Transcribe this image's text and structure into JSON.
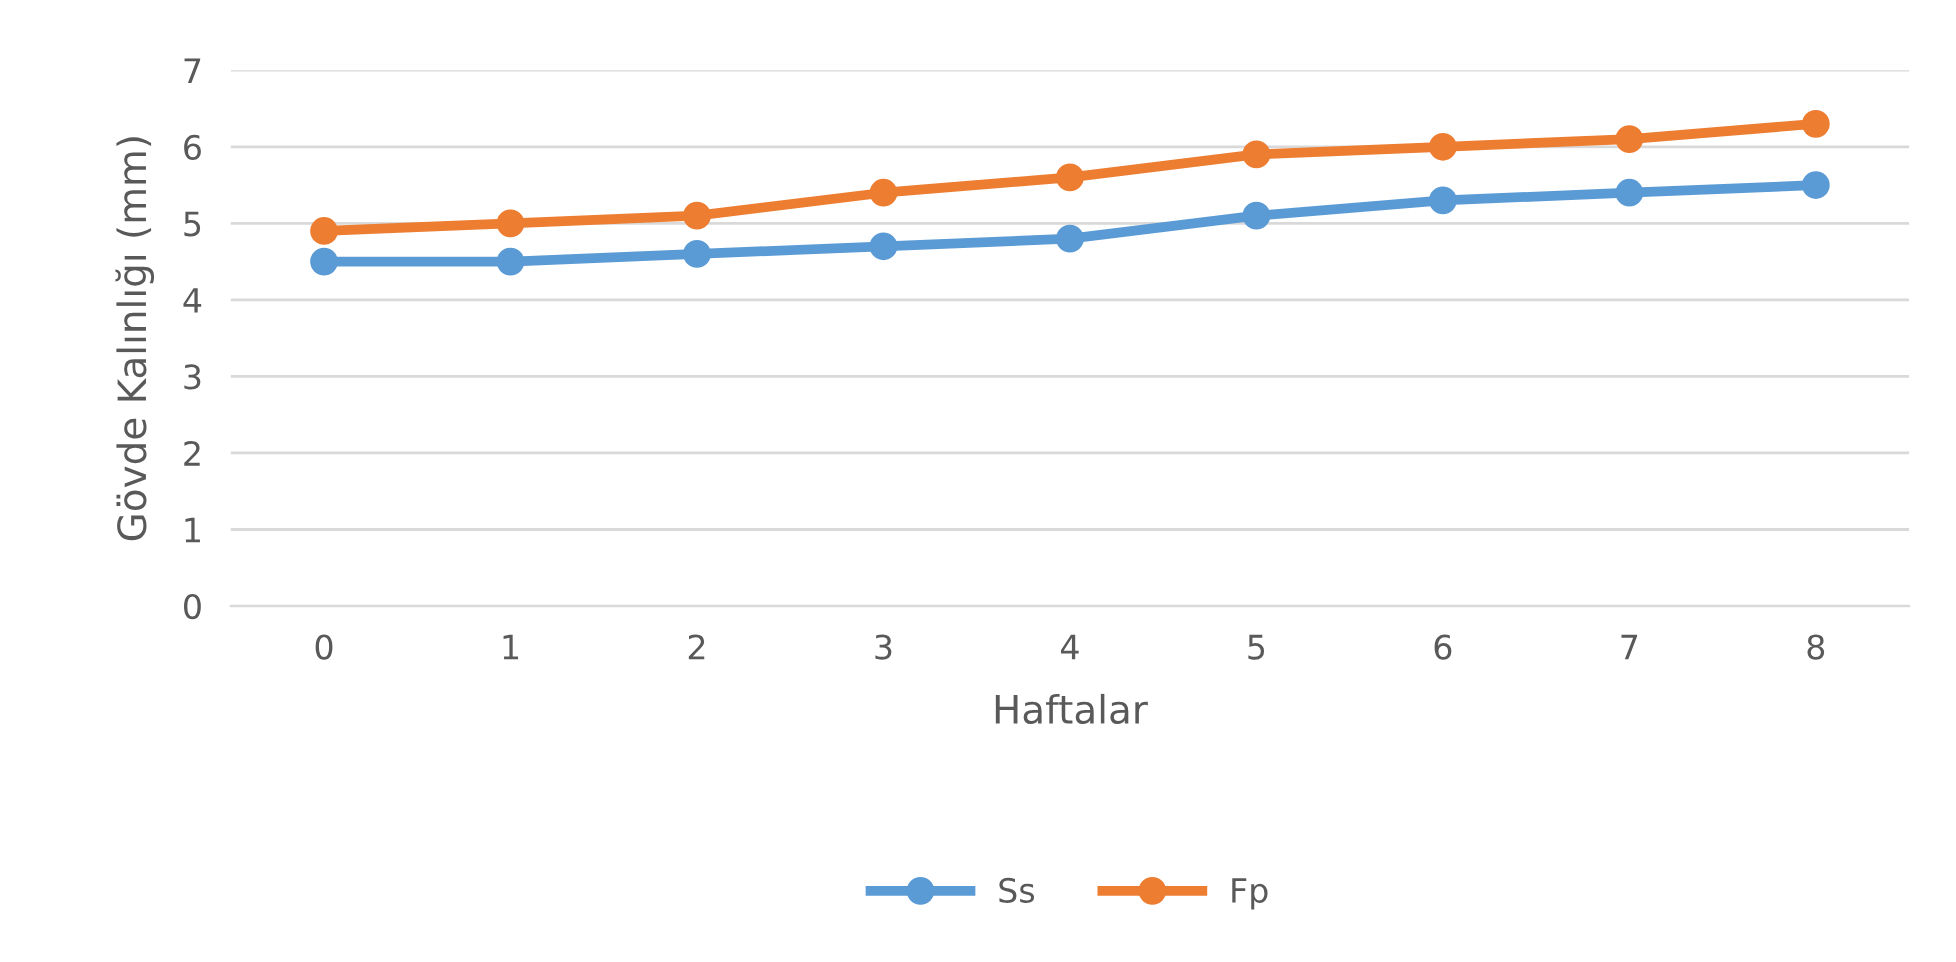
{
  "chart_data": {
    "type": "line",
    "xlabel": "Haftalar",
    "ylabel": "Gövde Kalınlığı (mm)",
    "categories": [
      "0",
      "1",
      "2",
      "3",
      "4",
      "5",
      "6",
      "7",
      "8"
    ],
    "series": [
      {
        "name": "Ss",
        "color": "#5b9bd5",
        "values": [
          4.5,
          4.5,
          4.6,
          4.7,
          4.8,
          5.1,
          5.3,
          5.4,
          5.5
        ]
      },
      {
        "name": "Fp",
        "color": "#ed7d31",
        "values": [
          4.9,
          5.0,
          5.1,
          5.4,
          5.6,
          5.9,
          6.0,
          6.1,
          6.3
        ]
      }
    ],
    "ylim": [
      0,
      7
    ],
    "yticks": [
      0,
      1,
      2,
      3,
      4,
      5,
      6,
      7
    ],
    "grid": "y",
    "legend": "bottom",
    "marker": "circle",
    "line_style": "solid"
  }
}
